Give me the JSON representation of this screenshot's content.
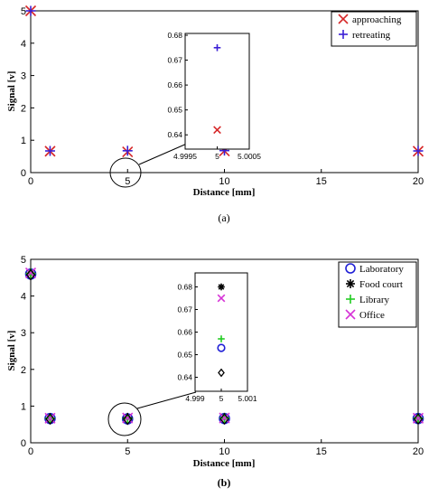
{
  "chart_data": [
    {
      "type": "scatter",
      "panel_label": "(a)",
      "xlabel": "Distance [mm]",
      "ylabel": "Signal [v]",
      "xlim": [
        0,
        20
      ],
      "ylim": [
        0,
        5
      ],
      "xticks": [
        "0",
        "5",
        "10",
        "15",
        "20"
      ],
      "yticks": [
        "0",
        "1",
        "2",
        "3",
        "4",
        "5"
      ],
      "legend_position": "top-right",
      "series": [
        {
          "name": "approaching",
          "marker": "x",
          "color": "#d62728",
          "x": [
            0,
            1,
            5,
            10,
            20
          ],
          "y": [
            5.0,
            0.66,
            0.642,
            0.67,
            0.66
          ]
        },
        {
          "name": "retreating",
          "marker": "+",
          "color": "#3b1fd6",
          "x": [
            0,
            1,
            5,
            10,
            20
          ],
          "y": [
            5.0,
            0.67,
            0.675,
            0.68,
            0.67
          ]
        }
      ],
      "annotation": "circle around x=5 with zoomed inset",
      "inset": {
        "xlim": [
          4.9995,
          5.0005
        ],
        "ylim": [
          0.635,
          0.68
        ],
        "xticks": [
          "4.9995",
          "5",
          "5.0005"
        ],
        "yticks": [
          "0.64",
          "0.65",
          "0.66",
          "0.67",
          "0.68"
        ],
        "points": [
          {
            "series": "approaching",
            "x": 5,
            "y": 0.642
          },
          {
            "series": "retreating",
            "x": 5,
            "y": 0.675
          }
        ]
      }
    },
    {
      "type": "scatter",
      "panel_label": "(b)",
      "xlabel": "Distance [mm]",
      "ylabel": "Signal [v]",
      "xlim": [
        0,
        20
      ],
      "ylim": [
        0,
        5
      ],
      "xticks": [
        "0",
        "5",
        "10",
        "15",
        "20"
      ],
      "yticks": [
        "0",
        "1",
        "2",
        "3",
        "4",
        "5"
      ],
      "legend_position": "top-right",
      "series": [
        {
          "name": "Laboratory",
          "marker": "o",
          "color": "#1f1fd6",
          "x": [
            0,
            1,
            5,
            10,
            20
          ],
          "y": [
            4.6,
            0.66,
            0.653,
            0.66,
            0.66
          ]
        },
        {
          "name": "Food court",
          "marker": "*",
          "color": "#000000",
          "x": [
            0,
            1,
            5,
            10,
            20
          ],
          "y": [
            4.62,
            0.67,
            0.68,
            0.68,
            0.67
          ]
        },
        {
          "name": "Library",
          "marker": "+",
          "color": "#22cc22",
          "x": [
            0,
            1,
            5,
            10,
            20
          ],
          "y": [
            4.61,
            0.665,
            0.657,
            0.67,
            0.665
          ]
        },
        {
          "name": "Office",
          "marker": "x",
          "color": "#d633d6",
          "x": [
            0,
            1,
            5,
            10,
            20
          ],
          "y": [
            4.63,
            0.67,
            0.675,
            0.675,
            0.67
          ]
        },
        {
          "name": "",
          "marker": "diamond",
          "color": "#000000",
          "x": [
            0,
            1,
            5,
            10,
            20
          ],
          "y": [
            4.58,
            0.65,
            0.642,
            0.65,
            0.65
          ]
        }
      ],
      "annotation": "circle around x=5 with zoomed inset",
      "inset": {
        "xlim": [
          4.999,
          5.001
        ],
        "ylim": [
          0.635,
          0.685
        ],
        "xticks": [
          "4.999",
          "5",
          "5.001"
        ],
        "yticks": [
          "0.64",
          "0.65",
          "0.66",
          "0.67",
          "0.68"
        ],
        "points": [
          {
            "series": "Food court",
            "x": 5,
            "y": 0.68
          },
          {
            "series": "Office",
            "x": 5,
            "y": 0.675
          },
          {
            "series": "Library",
            "x": 5,
            "y": 0.657
          },
          {
            "series": "Laboratory",
            "x": 5,
            "y": 0.653
          },
          {
            "series": "",
            "x": 5,
            "y": 0.642
          }
        ]
      }
    }
  ]
}
